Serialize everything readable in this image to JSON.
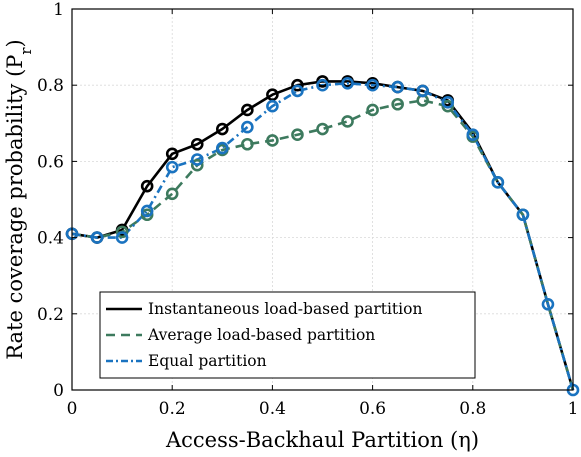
{
  "chart_data": {
    "type": "line",
    "xlabel": "Access-Backhaul Partition (η)",
    "ylabel": "Rate coverage probability (P_r)",
    "xlim": [
      0,
      1
    ],
    "ylim": [
      0,
      1
    ],
    "grid": true,
    "legend_position": "bottom-left",
    "x_ticks": [
      0,
      0.2,
      0.4,
      0.6,
      0.8,
      1
    ],
    "x_tick_labels": [
      "0",
      "0.2",
      "0.4",
      "0.6",
      "0.8",
      "1"
    ],
    "y_ticks": [
      0,
      0.2,
      0.4,
      0.6,
      0.8,
      1
    ],
    "y_tick_labels": [
      "0",
      "0.2",
      "0.4",
      "0.6",
      "0.8",
      "1"
    ],
    "series": [
      {
        "name": "Instantaneous load-based partition",
        "color": "#000000",
        "style": "solid",
        "line": {
          "x": [
            0,
            0.05,
            0.1,
            0.15,
            0.2,
            0.25,
            0.3,
            0.35,
            0.4,
            0.45,
            0.5,
            0.55,
            0.6,
            0.65,
            0.7,
            0.75,
            0.8,
            0.85,
            0.9,
            0.95,
            1
          ],
          "y": [
            0.41,
            0.4,
            0.42,
            0.535,
            0.62,
            0.645,
            0.685,
            0.735,
            0.775,
            0.8,
            0.81,
            0.81,
            0.805,
            0.795,
            0.785,
            0.76,
            0.675,
            0.545,
            0.46,
            0.225,
            0.0
          ]
        },
        "markers": {
          "x": [
            0,
            0.05,
            0.1,
            0.15,
            0.2,
            0.25,
            0.3,
            0.35,
            0.4,
            0.45,
            0.5,
            0.55,
            0.6,
            0.65,
            0.7,
            0.75
          ],
          "y": [
            0.41,
            0.4,
            0.42,
            0.535,
            0.62,
            0.645,
            0.685,
            0.735,
            0.775,
            0.8,
            0.81,
            0.81,
            0.805,
            0.795,
            0.785,
            0.76
          ]
        }
      },
      {
        "name": "Average load-based partition",
        "color": "#3d7a5e",
        "style": "dashed",
        "line": {
          "x": [
            0,
            0.05,
            0.1,
            0.15,
            0.2,
            0.25,
            0.3,
            0.35,
            0.4,
            0.45,
            0.5,
            0.55,
            0.6,
            0.65,
            0.7,
            0.75,
            0.8,
            0.85,
            0.9,
            0.95,
            1
          ],
          "y": [
            0.41,
            0.4,
            0.415,
            0.46,
            0.515,
            0.59,
            0.63,
            0.645,
            0.655,
            0.67,
            0.685,
            0.705,
            0.735,
            0.75,
            0.76,
            0.745,
            0.665,
            0.545,
            0.46,
            0.225,
            0.0
          ]
        },
        "markers": {
          "x": [
            0.1,
            0.15,
            0.2,
            0.25,
            0.3,
            0.35,
            0.4,
            0.45,
            0.5,
            0.55,
            0.6,
            0.65,
            0.7,
            0.75,
            0.8,
            0.85,
            0.9
          ],
          "y": [
            0.415,
            0.46,
            0.515,
            0.59,
            0.63,
            0.645,
            0.655,
            0.67,
            0.685,
            0.705,
            0.735,
            0.75,
            0.76,
            0.745,
            0.665,
            0.545,
            0.46
          ]
        }
      },
      {
        "name": "Equal partition",
        "color": "#1a73c0",
        "style": "dashdot",
        "line": {
          "x": [
            0,
            0.05,
            0.1,
            0.15,
            0.2,
            0.25,
            0.3,
            0.35,
            0.4,
            0.45,
            0.5,
            0.55,
            0.6,
            0.65,
            0.7,
            0.75,
            0.8,
            0.85,
            0.9,
            0.95,
            1
          ],
          "y": [
            0.41,
            0.4,
            0.4,
            0.47,
            0.585,
            0.605,
            0.635,
            0.69,
            0.745,
            0.785,
            0.8,
            0.805,
            0.8,
            0.795,
            0.785,
            0.755,
            0.67,
            0.545,
            0.46,
            0.225,
            0.0
          ]
        },
        "markers": {
          "x": [
            0,
            0.05,
            0.1,
            0.15,
            0.2,
            0.25,
            0.3,
            0.35,
            0.4,
            0.45,
            0.5,
            0.55,
            0.6,
            0.65,
            0.7,
            0.75,
            0.8,
            0.85,
            0.9,
            0.95,
            1
          ],
          "y": [
            0.41,
            0.4,
            0.4,
            0.47,
            0.585,
            0.605,
            0.635,
            0.69,
            0.745,
            0.785,
            0.8,
            0.805,
            0.8,
            0.795,
            0.785,
            0.755,
            0.67,
            0.545,
            0.46,
            0.225,
            0.0
          ]
        }
      }
    ]
  }
}
